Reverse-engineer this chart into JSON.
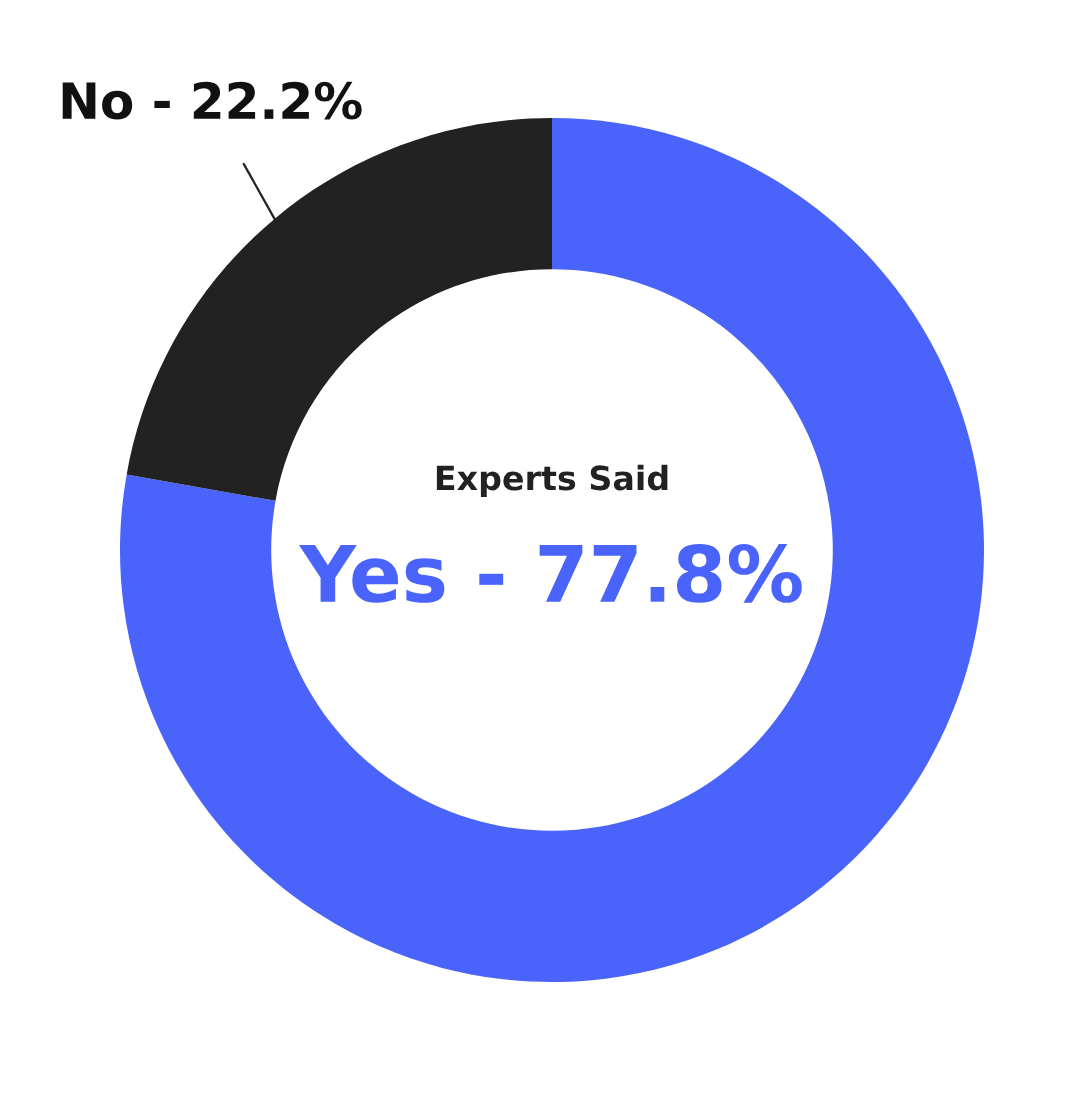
{
  "chart_data": {
    "type": "donut",
    "categories": [
      "Yes - 77.8%",
      "No - 22.2%"
    ],
    "values": [
      77.8,
      22.2
    ],
    "colors": [
      "#4a64fb",
      "#222222"
    ],
    "annotations": [
      "Experts Said"
    ],
    "legend": false
  }
}
